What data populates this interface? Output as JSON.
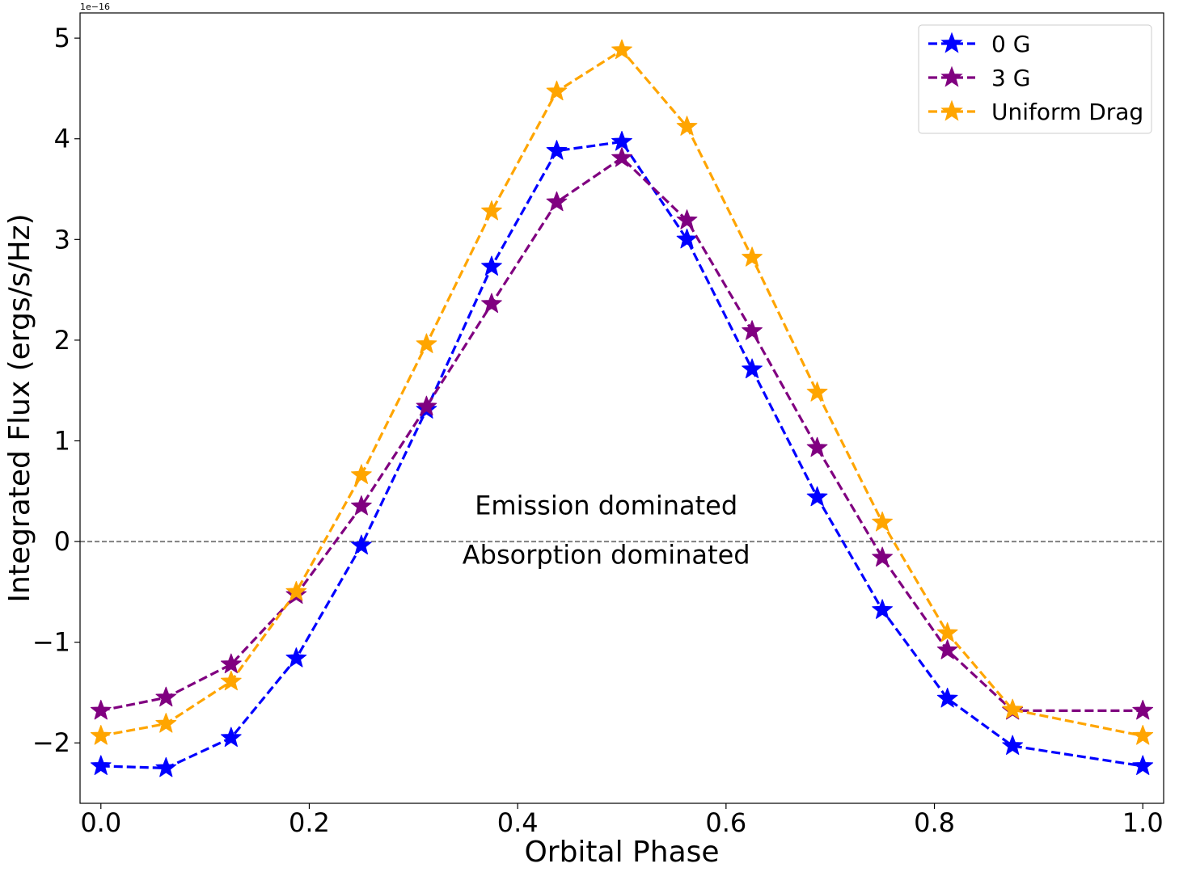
{
  "chart_data": {
    "type": "line",
    "xlabel": "Orbital Phase",
    "ylabel": "Integrated Flux (ergs/s/Hz)",
    "y_offset_label": "1e−16",
    "xlim": [
      -0.02,
      1.02
    ],
    "ylim": [
      -2.6,
      5.25
    ],
    "xticks": [
      0.0,
      0.2,
      0.4,
      0.6,
      0.8,
      1.0
    ],
    "xtick_labels": [
      "0.0",
      "0.2",
      "0.4",
      "0.6",
      "0.8",
      "1.0"
    ],
    "yticks": [
      -2,
      -1,
      0,
      1,
      2,
      3,
      4,
      5
    ],
    "ytick_labels": [
      "−2",
      "−1",
      "0",
      "1",
      "2",
      "3",
      "4",
      "5"
    ],
    "reference_line": {
      "y": 0,
      "color": "#808080",
      "style": "dashed"
    },
    "annotations": [
      {
        "text": "Emission dominated",
        "x": 0.485,
        "y": 0.27
      },
      {
        "text": "Absorption dominated",
        "x": 0.485,
        "y": -0.22
      }
    ],
    "legend_position": "top-right",
    "x": [
      0.0,
      0.0625,
      0.125,
      0.1875,
      0.25,
      0.3125,
      0.375,
      0.4375,
      0.5,
      0.5625,
      0.625,
      0.6875,
      0.75,
      0.8125,
      0.875,
      1.0
    ],
    "series": [
      {
        "name": "0 G",
        "color": "#0000ff",
        "values": [
          -2.23,
          -2.25,
          -1.95,
          -1.16,
          -0.04,
          1.31,
          2.73,
          3.88,
          3.97,
          3.0,
          1.71,
          0.44,
          -0.68,
          -1.56,
          -2.03,
          -2.23
        ]
      },
      {
        "name": "3 G",
        "color": "#800080",
        "values": [
          -1.68,
          -1.55,
          -1.22,
          -0.53,
          0.35,
          1.34,
          2.36,
          3.37,
          3.81,
          3.19,
          2.09,
          0.93,
          -0.16,
          -1.08,
          -1.68,
          -1.68
        ]
      },
      {
        "name": "Uniform Drag",
        "color": "#ffa500",
        "values": [
          -1.93,
          -1.81,
          -1.39,
          -0.5,
          0.66,
          1.96,
          3.28,
          4.47,
          4.88,
          4.12,
          2.82,
          1.48,
          0.19,
          -0.91,
          -1.67,
          -1.93
        ]
      }
    ]
  }
}
